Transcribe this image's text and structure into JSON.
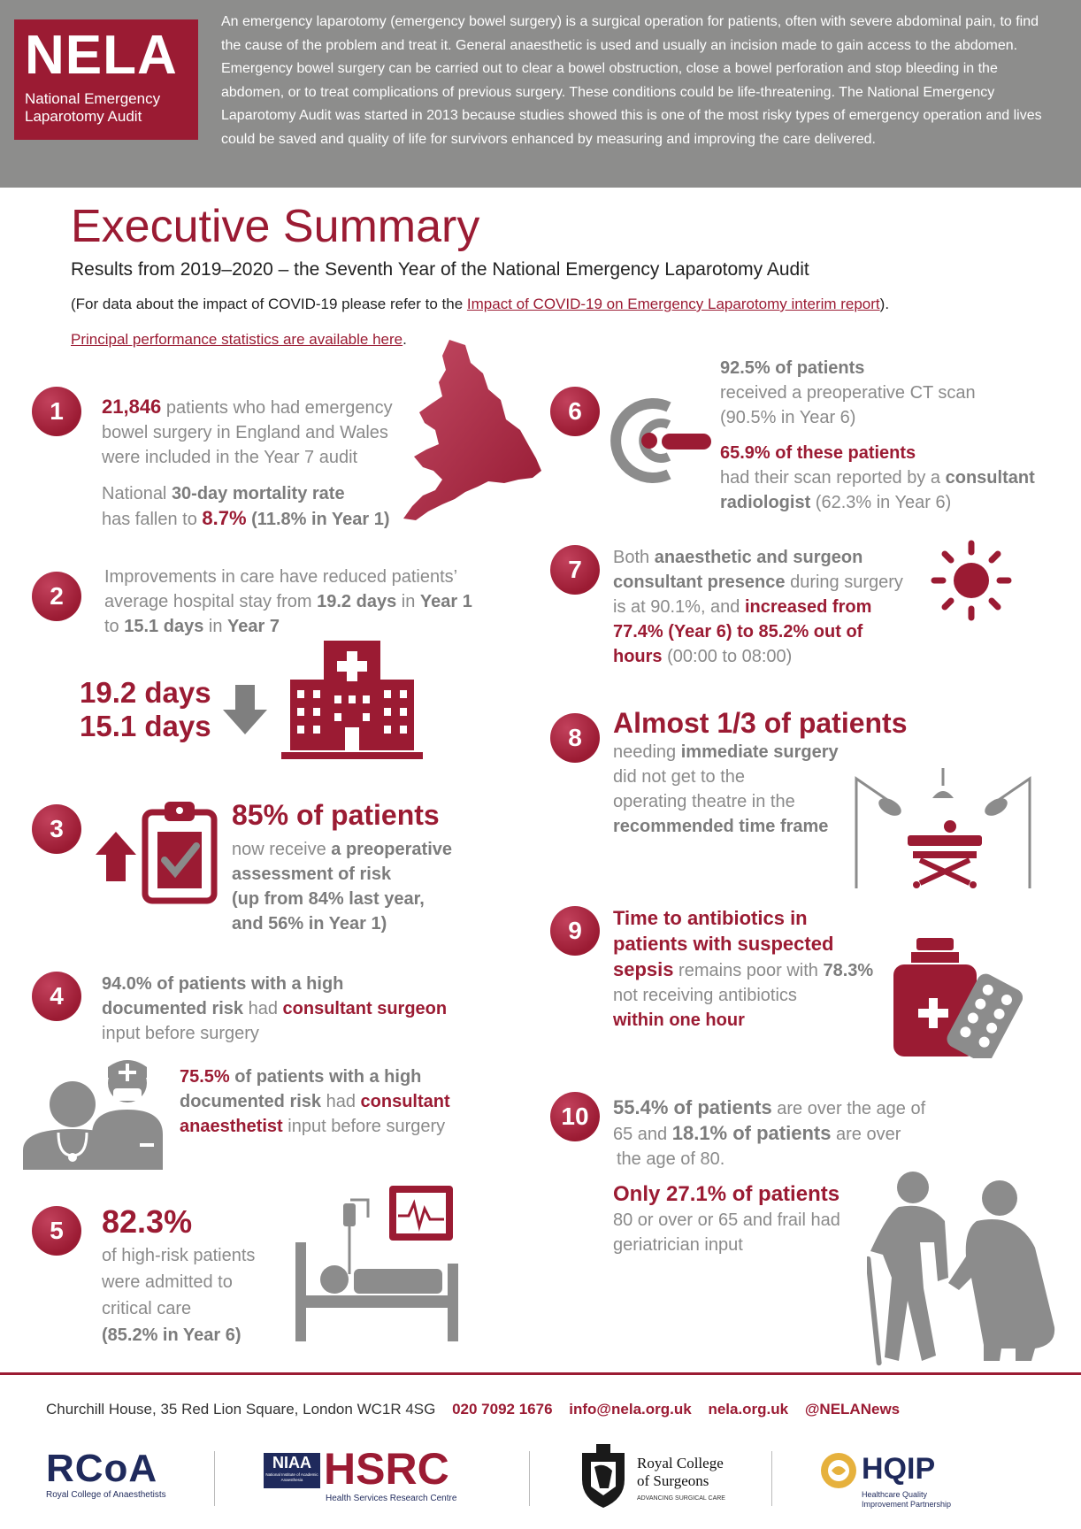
{
  "header": {
    "logo_big": "NELA",
    "logo_line1": "National Emergency",
    "logo_line2": "Laparotomy Audit",
    "intro": "An emergency laparotomy (emergency bowel surgery) is a surgical operation for patients, often with severe abdominal pain, to find the cause of the problem and treat it. General anaesthetic is used and usually an incision made to gain access to the abdomen. Emergency bowel surgery can be carried out to clear a bowel obstruction, close a bowel perforation and stop bleeding in the abdomen, or to treat complications of previous surgery. These conditions could be life-threatening. The National Emergency Laparotomy Audit was started in 2013 because studies showed this is one of the most risky types of emergency operation and lives could be saved and quality of life for survivors enhanced by measuring and improving the care delivered."
  },
  "title": "Executive Summary",
  "subtitle": "Results from 2019–2020 – the Seventh Year of the National Emergency Laparotomy Audit",
  "covid": {
    "prefix": "(For data about the impact of COVID-19 please refer to the ",
    "link": "Impact of COVID-19 on Emergency Laparotomy interim report",
    "suffix": ")."
  },
  "principal": {
    "link": "Principal performance statistics are available here",
    "suffix": "."
  },
  "items": {
    "i1": {
      "num": "1",
      "a_bold": "21,846",
      "a_rest1": " patients who had emergency",
      "a_line2": "bowel surgery in England and Wales",
      "a_line3": "were included in the Year 7 audit",
      "b_pre": "National ",
      "b_bold": "30-day mortality rate",
      "b_line2": "has fallen to ",
      "b_val": "8.7%",
      "b_tail": " (11.8% in Year 1)"
    },
    "i2": {
      "num": "2",
      "line1": "Improvements in care have reduced patients’",
      "line2_pre": "average hospital stay from ",
      "line2_v1": "19.2 days",
      "line2_mid": " in ",
      "line2_y1": "Year 1",
      "line3_pre": "to ",
      "line3_v2": "15.1 days",
      "line3_mid": " in ",
      "line3_y7": "Year 7",
      "big1": "19.2 days",
      "big2": "15.1 days"
    },
    "i3": {
      "num": "3",
      "head": "85% of patients",
      "l1_pre": "now receive ",
      "l1_bold": "a preoperative",
      "l2": "assessment of risk",
      "l3": "(up from 84% last year,",
      "l4": "and 56% in Year 1)"
    },
    "i4": {
      "num": "4",
      "a_l1_bold": "94.0%",
      "a_l1_rest": " of patients with a high",
      "a_l2_bold": "documented risk",
      "a_l2_mid": " had ",
      "a_l2_red": "consultant surgeon",
      "a_l3": "input before surgery",
      "b_l1_bold": "75.5%",
      "b_l1_rest": " of patients with a high",
      "b_l2_bold": "documented risk",
      "b_l2_mid": " had ",
      "b_l2_red": "consultant",
      "b_l3_red": "anaesthetist",
      "b_l3_rest": " input before surgery"
    },
    "i5": {
      "num": "5",
      "big": "82.3%",
      "l1": "of high-risk patients",
      "l2": "were admitted to",
      "l3": "critical care",
      "l4": "(85.2% in Year 6)"
    },
    "i6": {
      "num": "6",
      "a_bold": "92.5% of patients",
      "a_l2": "received a preoperative CT scan",
      "a_l3": "(90.5% in Year 6)",
      "b_bold": "65.9% of these patients",
      "b_l2_pre": "had their scan reported by a ",
      "b_l2_bold": "consultant",
      "b_l3_bold": "radiologist",
      "b_l3_rest": " (62.3% in Year 6)"
    },
    "i7": {
      "num": "7",
      "l1_pre": "Both ",
      "l1_bold": "anaesthetic and surgeon",
      "l2_bold": "consultant presence",
      "l2_rest": " during surgery",
      "l3_pre": "is at 90.1%, and ",
      "l3_red": "increased from",
      "l4_red": "77.4% (Year 6) to 85.2% out of",
      "l5_red": "hours",
      "l5_rest": " (00:00 to 08:00)"
    },
    "i8": {
      "num": "8",
      "head": "Almost 1/3 of patients",
      "l1_pre": "needing ",
      "l1_bold": "immediate surgery",
      "l2": "did not get to the",
      "l3": "operating theatre in the",
      "l4_bold": "recommended time frame"
    },
    "i9": {
      "num": "9",
      "l1_red": "Time to antibiotics in",
      "l2_red": "patients with suspected",
      "l3_red": "sepsis",
      "l3_rest": " remains poor with ",
      "l3_bold": "78.3%",
      "l4": "not receiving antibiotics",
      "l5_red": "within one hour"
    },
    "i10": {
      "num": "10",
      "l1_bold": "55.4% of patients",
      "l1_rest": " are over the age of",
      "l2_pre": "65 and ",
      "l2_bold": "18.1% of patients",
      "l2_rest": " are over",
      "l3": "the age of 80.",
      "head": "Only 27.1% of patients",
      "l4": "80 or over or 65 and frail had",
      "l5": "geriatrician input"
    }
  },
  "footer": {
    "address": "Churchill House, 35 Red Lion Square, London WC1R 4SG",
    "phone": "020 7092 1676",
    "email": "info@nela.org.uk",
    "web": "nela.org.uk",
    "twitter": "@NELANews",
    "rcoa": "RCoA",
    "rcoa_sub": "Royal College of Anaesthetists",
    "niaa": "NIAA",
    "niaa_sub": "National Institute of Academic Anaesthesia",
    "hsrc": "HSRC",
    "hsrc_sub": "Health Services Research Centre",
    "rcs1": "Royal College",
    "rcs2": "of Surgeons",
    "rcs_sub": "ADVANCING SURGICAL CARE",
    "hqip": "HQIP",
    "hqip_sub1": "Healthcare Quality",
    "hqip_sub2": "Improvement Partnership"
  },
  "colors": {
    "accent": "#9b1b33",
    "header_bg": "#8d8d8c",
    "icon_grey": "#8c8c8c"
  }
}
